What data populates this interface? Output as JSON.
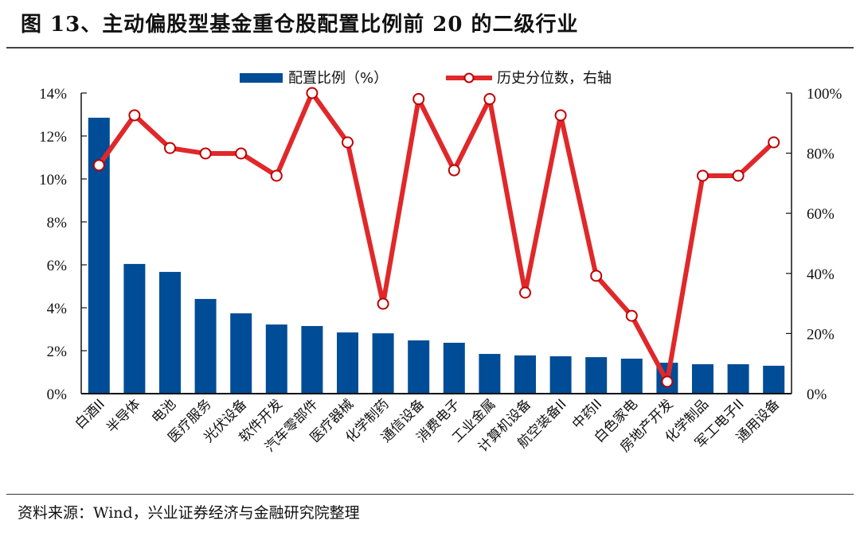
{
  "title": "图 13、主动偏股型基金重仓股配置比例前 20 的二级行业",
  "source": "资料来源：Wind，兴业证券经济与金融研究院整理",
  "colors": {
    "bar": "#004C97",
    "line": "#E0282A",
    "marker_fill": "#FFFFFF",
    "marker_edge": "#C00000"
  },
  "legend": {
    "bar_label": "配置比例（%）",
    "line_label": "历史分位数，右轴"
  },
  "chart_data": {
    "type": "bar+line",
    "title": "图 13、主动偏股型基金重仓股配置比例前 20 的二级行业",
    "categories": [
      "白酒II",
      "半导体",
      "电池",
      "医疗服务",
      "光伏设备",
      "软件开发",
      "汽车零部件",
      "医疗器械",
      "化学制药",
      "通信设备",
      "消费电子",
      "工业金属",
      "计算机设备",
      "航空装备II",
      "中药II",
      "白色家电",
      "房地产开发",
      "化学制品",
      "军工电子II",
      "通用设备"
    ],
    "series": [
      {
        "name": "配置比例（%）",
        "type": "bar",
        "axis": "left",
        "values": [
          12.85,
          6.04,
          5.67,
          4.41,
          3.74,
          3.22,
          3.15,
          2.85,
          2.81,
          2.48,
          2.37,
          1.85,
          1.78,
          1.74,
          1.7,
          1.63,
          1.44,
          1.37,
          1.37,
          1.3
        ]
      },
      {
        "name": "历史分位数，右轴",
        "type": "line",
        "axis": "right",
        "values": [
          76.0,
          92.6,
          81.7,
          79.9,
          79.9,
          72.5,
          100.0,
          83.6,
          29.9,
          98.0,
          74.3,
          98.0,
          33.6,
          92.6,
          39.2,
          25.9,
          4.0,
          72.5,
          72.5,
          83.6
        ]
      }
    ],
    "left_axis": {
      "ylim": [
        0,
        14
      ],
      "ticks": [
        "0%",
        "2%",
        "4%",
        "6%",
        "8%",
        "10%",
        "12%",
        "14%"
      ]
    },
    "right_axis": {
      "ylim": [
        0,
        100
      ],
      "ticks": [
        "0%",
        "20%",
        "40%",
        "60%",
        "80%",
        "100%"
      ]
    },
    "xlabel": "",
    "ylabel": "",
    "grid": false,
    "legend_position": "top"
  }
}
